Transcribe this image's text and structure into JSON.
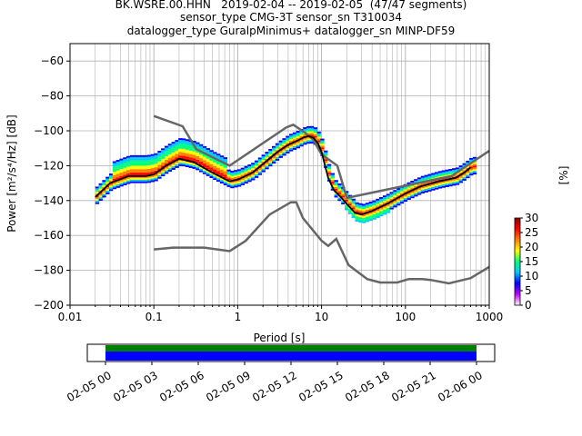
{
  "title_lines": [
    "BK.WSRE.00.HHN   2019-02-04 -- 2019-02-05  (47/47 segments)",
    "sensor_type CMG-3T sensor_sn T310034",
    "datalogger_type GuralpMinimus+ datalogger_sn MINP-DF59"
  ],
  "chart_data": {
    "type": "heatmap",
    "xlabel": "Period [s]",
    "ylabel": "Power [m²/s⁴/Hz] [dB]",
    "xscale": "log",
    "xlim": [
      0.01,
      1000
    ],
    "ylim": [
      -200,
      -50
    ],
    "xticks": [
      0.01,
      0.1,
      1,
      10,
      100,
      1000
    ],
    "xtick_labels": [
      "0.01",
      "0.1",
      "1",
      "10",
      "100",
      "1000"
    ],
    "yticks": [
      -200,
      -180,
      -160,
      -140,
      -120,
      -100,
      -80,
      -60
    ],
    "ytick_labels": [
      "−200",
      "−180",
      "−160",
      "−140",
      "−120",
      "−100",
      "−80",
      "−60"
    ],
    "grid": true,
    "mode_curve": [
      [
        0.02,
        -138
      ],
      [
        0.03,
        -130
      ],
      [
        0.05,
        -126
      ],
      [
        0.08,
        -126
      ],
      [
        0.1,
        -125
      ],
      [
        0.14,
        -120
      ],
      [
        0.2,
        -116
      ],
      [
        0.3,
        -118
      ],
      [
        0.5,
        -124
      ],
      [
        0.8,
        -129
      ],
      [
        1.0,
        -128
      ],
      [
        1.5,
        -124
      ],
      [
        2.0,
        -119
      ],
      [
        3.0,
        -112
      ],
      [
        4.0,
        -108
      ],
      [
        5.0,
        -106
      ],
      [
        6.0,
        -104
      ],
      [
        7.0,
        -103
      ],
      [
        8.0,
        -104
      ],
      [
        9.0,
        -107
      ],
      [
        10.0,
        -112
      ],
      [
        11.0,
        -120
      ],
      [
        12.0,
        -127
      ],
      [
        14.0,
        -134
      ],
      [
        17.0,
        -138
      ],
      [
        20.0,
        -142
      ],
      [
        25.0,
        -147
      ],
      [
        30.0,
        -148
      ],
      [
        40.0,
        -146
      ],
      [
        60.0,
        -142
      ],
      [
        100.0,
        -136
      ],
      [
        150.0,
        -132
      ],
      [
        250.0,
        -129
      ],
      [
        400.0,
        -127
      ],
      [
        500.0,
        -124
      ],
      [
        600.0,
        -121
      ]
    ],
    "nlnm": [
      [
        0.1,
        -168
      ],
      [
        0.17,
        -167
      ],
      [
        0.4,
        -167
      ],
      [
        0.8,
        -169
      ],
      [
        1.25,
        -163
      ],
      [
        2.4,
        -148
      ],
      [
        4.3,
        -141
      ],
      [
        5.0,
        -141
      ],
      [
        6.0,
        -150
      ],
      [
        10.0,
        -163
      ],
      [
        12.0,
        -166
      ],
      [
        15.0,
        -162
      ],
      [
        21.0,
        -177
      ],
      [
        35.0,
        -185
      ],
      [
        50.0,
        -187
      ],
      [
        80.0,
        -187
      ],
      [
        110.0,
        -185
      ],
      [
        160.0,
        -185
      ],
      [
        200.0,
        -185.5
      ],
      [
        330.0,
        -187.5
      ],
      [
        600.0,
        -184.5
      ],
      [
        1000.0,
        -178
      ]
    ],
    "nhnm": [
      [
        0.1,
        -91.5
      ],
      [
        0.22,
        -97.4
      ],
      [
        0.32,
        -110.5
      ],
      [
        0.8,
        -120
      ],
      [
        3.8,
        -98
      ],
      [
        4.6,
        -96.5
      ],
      [
        6.3,
        -101
      ],
      [
        7.9,
        -105
      ],
      [
        10.0,
        -113.5
      ],
      [
        15.4,
        -120
      ],
      [
        20.0,
        -138.5
      ],
      [
        354.0,
        -126
      ],
      [
        1000.0,
        -111.5
      ]
    ],
    "colorbar": {
      "label": "[%]",
      "min": 0,
      "max": 30,
      "ticks": [
        0,
        5,
        10,
        15,
        20,
        25,
        30
      ],
      "colors": [
        "#ffffff",
        "#bf00ff",
        "#0000ff",
        "#00c8ff",
        "#00ff80",
        "#ffff00",
        "#ff8000",
        "#ff0000",
        "#8b0000"
      ]
    },
    "coverage": {
      "tick_labels": [
        "02-05 00",
        "02-05 03",
        "02-05 06",
        "02-05 09",
        "02-05 12",
        "02-05 15",
        "02-05 18",
        "02-05 21",
        "02-06 00"
      ],
      "data_color": "#0000ff",
      "gap_color": "#008000"
    }
  }
}
